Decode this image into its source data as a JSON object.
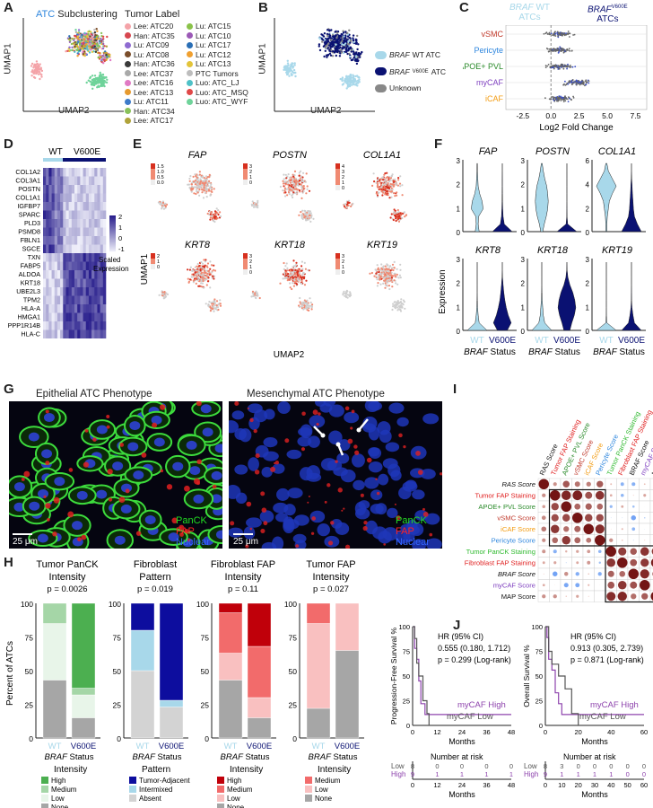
{
  "panels": {
    "A": {
      "label": "A",
      "title_colored": "ATC",
      "title_rest": " Subclustering",
      "legend_title": "Tumor Label",
      "xlabel": "UMAP2",
      "ylabel": "UMAP1",
      "legend_col1": [
        {
          "name": "Lee: ATC20",
          "color": "#f4a3a8"
        },
        {
          "name": "Han: ATC35",
          "color": "#d7474f"
        },
        {
          "name": "Lu: ATC09",
          "color": "#8e6bd1"
        },
        {
          "name": "Lu: ATC08",
          "color": "#7b4e2b"
        },
        {
          "name": "Han: ATC36",
          "color": "#3a3a3a"
        },
        {
          "name": "Lee: ATC37",
          "color": "#a9a9a9"
        },
        {
          "name": "Lee: ATC16",
          "color": "#e07ac4"
        },
        {
          "name": "Lee: ATC13",
          "color": "#e69a2f"
        },
        {
          "name": "Lu: ATC11",
          "color": "#3d7bc9"
        },
        {
          "name": "Han: ATC34",
          "color": "#89c15a"
        },
        {
          "name": "Lee: ATC17",
          "color": "#b0a33a"
        }
      ],
      "legend_col2": [
        {
          "name": "Lu: ATC15",
          "color": "#8ac24a"
        },
        {
          "name": "Lu: ATC10",
          "color": "#9b59b6"
        },
        {
          "name": "Lu: ATC17",
          "color": "#2a6eb5"
        },
        {
          "name": "Lu: ATC12",
          "color": "#f0a030"
        },
        {
          "name": "Lu: ATC13",
          "color": "#e3c43a"
        },
        {
          "name": "PTC Tumors",
          "color": "#bdbdbd"
        },
        {
          "name": "Luo: ATC_LJ",
          "color": "#4fc1c7"
        },
        {
          "name": "Luo: ATC_MSQ",
          "color": "#e04848"
        },
        {
          "name": "Luo: ATC_WYF",
          "color": "#6fd39a"
        }
      ]
    },
    "B": {
      "label": "B",
      "xlabel": "UMAP2",
      "ylabel": "UMAP1",
      "legend": [
        {
          "gene": "BRAF",
          "rest": " WT ATC",
          "color": "#a8d8ea"
        },
        {
          "gene": "BRAF",
          "sup": "V600E",
          "rest": " ATC",
          "color": "#0a1172"
        },
        {
          "gene": "",
          "rest": "Unknown",
          "color": "#888888"
        }
      ]
    },
    "C": {
      "label": "C",
      "head_left_gene": "BRAF",
      "head_left_rest": " WT",
      "head_left2": "ATCs",
      "head_right_gene": "BRAF",
      "head_right_sup": "V600E",
      "head_right2": "ATCs",
      "xlabel": "Log2 Fold Change",
      "rows": [
        {
          "name": "vSMC",
          "color": "#c0392b"
        },
        {
          "name": "Pericyte",
          "color": "#2e86de"
        },
        {
          "name": "APOE+ PVL",
          "color": "#2a8a2a"
        },
        {
          "name": "myCAF",
          "color": "#7e3fbf"
        },
        {
          "name": "iCAF",
          "color": "#f39c12"
        }
      ],
      "ticks": [
        "-2.5",
        "0.0",
        "2.5",
        "5.0",
        "7.5"
      ]
    },
    "D": {
      "label": "D",
      "col_wt": "WT",
      "col_v600e": "V600E",
      "scale_label": "Scaled Expression",
      "scale_ticks": [
        "2",
        "1",
        "0",
        "-1"
      ],
      "genes": [
        "COL1A2",
        "COL3A1",
        "POSTN",
        "COL1A1",
        "IGFBP7",
        "SPARC",
        "PLD3",
        "PSMD8",
        "FBLN1",
        "SGCE",
        "TXN",
        "FABP5",
        "ALDOA",
        "KRT18",
        "UBE2L3",
        "TPM2",
        "HLA-A",
        "HMGA1",
        "PPP1R14B",
        "HLA-C"
      ]
    },
    "E": {
      "label": "E",
      "xlabel": "UMAP2",
      "ylabel": "UMAP1",
      "genes_top": [
        "FAP",
        "POSTN",
        "COL1A1"
      ],
      "genes_bottom": [
        "KRT8",
        "KRT18",
        "KRT19"
      ],
      "scales_top": [
        [
          "1.5",
          "1.0",
          "0.5",
          "0.0"
        ],
        [
          "3",
          "2",
          "1",
          "0"
        ],
        [
          "4",
          "3",
          "2",
          "1",
          "0"
        ]
      ],
      "scales_bottom": [
        [
          "2",
          "1",
          "0"
        ],
        [
          "3",
          "2",
          "1",
          "0"
        ],
        [
          "3",
          "2",
          "1",
          "0"
        ]
      ]
    },
    "F": {
      "label": "F",
      "ylabel": "Expression",
      "xlabel_gene": "BRAF",
      "xlabel_rest": " Status",
      "cat_wt": "WT",
      "cat_v600e": "V600E",
      "top": [
        {
          "gene": "FAP",
          "ticks": [
            "3",
            "2",
            "1",
            "0"
          ]
        },
        {
          "gene": "POSTN",
          "ticks": [
            "3",
            "2",
            "1",
            "0"
          ]
        },
        {
          "gene": "COL1A1",
          "ticks": [
            "6",
            "4",
            "2",
            "0"
          ]
        }
      ],
      "bottom": [
        {
          "gene": "KRT8",
          "ticks": [
            "3",
            "2",
            "1",
            "0"
          ]
        },
        {
          "gene": "KRT18",
          "ticks": [
            "3",
            "2",
            "1",
            "0"
          ]
        },
        {
          "gene": "KRT19",
          "ticks": [
            "3",
            "2",
            "1",
            "0"
          ]
        }
      ]
    },
    "G": {
      "label": "G",
      "left_title": "Epithelial ATC Phenotype",
      "right_title": "Mesenchymal ATC Phenotype",
      "scale": "25 μm",
      "stain_legend": [
        {
          "name": "PanCK",
          "color": "#22dd22"
        },
        {
          "name": "FAP",
          "color": "#ff2222"
        },
        {
          "name": "Nuclear",
          "color": "#3366ff"
        }
      ]
    },
    "H": {
      "label": "H",
      "ylabel": "Percent of ATCs",
      "xlabel_gene": "BRAF",
      "xlabel_rest": " Status",
      "cat_wt": "WT",
      "cat_v600e": "V600E",
      "y_ticks": [
        "100",
        "75",
        "50",
        "25",
        "0"
      ],
      "charts": [
        {
          "title1": "Tumor PanCK",
          "title2": "Intensity",
          "p": "p = 0.0026",
          "legend_title": "Intensity",
          "legend": [
            {
              "name": "High",
              "color": "#4caf50"
            },
            {
              "name": "Medium",
              "color": "#a5d6a7"
            },
            {
              "name": "Low",
              "color": "#e8f5e9"
            },
            {
              "name": "None",
              "color": "#a6a6a6"
            }
          ]
        },
        {
          "title1": "Fibroblast",
          "title2": "Pattern",
          "p": "p = 0.019",
          "legend_title": "Pattern",
          "legend": [
            {
              "name": "Tumor-Adjacent",
              "color": "#0d0d9e"
            },
            {
              "name": "Intermixed",
              "color": "#a8d8ea"
            },
            {
              "name": "Absent",
              "color": "#d3d3d3"
            }
          ]
        },
        {
          "title1": "Fibroblast FAP",
          "title2": "Intensity",
          "p": "p = 0.11",
          "legend_title": "Intensity",
          "legend": [
            {
              "name": "High",
              "color": "#c0000a"
            },
            {
              "name": "Medium",
              "color": "#f26b6b"
            },
            {
              "name": "Low",
              "color": "#f9c0c0"
            },
            {
              "name": "None",
              "color": "#a6a6a6"
            }
          ]
        },
        {
          "title1": "Tumor FAP",
          "title2": "Intensity",
          "p": "p = 0.027",
          "legend_title": "Intensity",
          "legend": [
            {
              "name": "Medium",
              "color": "#f26b6b"
            },
            {
              "name": "Low",
              "color": "#f9c0c0"
            },
            {
              "name": "None",
              "color": "#a6a6a6"
            }
          ]
        }
      ]
    },
    "I": {
      "label": "I",
      "legend_title": "Spearman's rho",
      "scale_ticks": [
        "-1",
        "-0.5",
        "0",
        "0.5",
        "1"
      ],
      "vars": [
        {
          "name": "RAS Score",
          "color": "#111111",
          "ital": true
        },
        {
          "name": "Tumor FAP Staining",
          "color": "#e02020"
        },
        {
          "name": "APOE+ PVL Score",
          "color": "#2a8a2a"
        },
        {
          "name": "vSMC Score",
          "color": "#c0392b"
        },
        {
          "name": "iCAF Score",
          "color": "#f39c12"
        },
        {
          "name": "Pericyte Score",
          "color": "#2e86de"
        },
        {
          "name": "Tumor PanCK Staining",
          "color": "#33bb33"
        },
        {
          "name": "Fibroblast FAP Staining",
          "color": "#e02020"
        },
        {
          "name": "BRAF Score",
          "color": "#111111",
          "ital": true
        },
        {
          "name": "myCAF Score",
          "color": "#7e3fbf"
        },
        {
          "name": "MAP Score",
          "color": "#111111"
        }
      ]
    },
    "J": {
      "label": "J",
      "left": {
        "ylabel": "Progression-Free Survival %",
        "hr1": "HR (95% CI)",
        "hr2": "0.555 (0.180, 1.712)",
        "p": "p = 0.299 (Log-rank)",
        "high": "myCAF High",
        "low": "myCAF Low",
        "xlabel": "Months",
        "x_ticks": [
          "0",
          "12",
          "24",
          "36",
          "48"
        ],
        "y_ticks": [
          "100",
          "75",
          "50",
          "25",
          "0"
        ],
        "risk_title": "Number at risk",
        "risk_low": [
          "8",
          "0",
          "0",
          "0",
          "0"
        ],
        "risk_high": [
          "9",
          "1",
          "1",
          "1",
          "1"
        ]
      },
      "right": {
        "ylabel": "Overall Survival %",
        "hr1": "HR (95% CI)",
        "hr2": "0.913 (0.305, 2.739)",
        "p": "p = 0.871 (Log-rank)",
        "high": "myCAF High",
        "low": "myCAF Low",
        "xlabel": "Months",
        "x_ticks": [
          "0",
          "20",
          "40",
          "60"
        ],
        "y_ticks": [
          "100",
          "75",
          "50",
          "25",
          "0"
        ],
        "risk_title": "Number at risk",
        "risk_low": [
          "8",
          "3",
          "0",
          "0",
          "0",
          "0",
          "0"
        ],
        "risk_high": [
          "9",
          "1",
          "1",
          "1",
          "1",
          "0",
          "0"
        ],
        "risk_ticks": [
          "0",
          "10",
          "20",
          "30",
          "40",
          "50",
          "60"
        ]
      },
      "risk_label_low": "Low",
      "risk_label_high": "High"
    }
  },
  "chart_data": [
    {
      "type": "bar",
      "title": "Tumor PanCK Intensity",
      "categories": [
        "WT",
        "V600E"
      ],
      "series": [
        {
          "name": "None",
          "values": [
            43,
            15
          ]
        },
        {
          "name": "Low",
          "values": [
            42,
            17
          ]
        },
        {
          "name": "Medium",
          "values": [
            15,
            5
          ]
        },
        {
          "name": "High",
          "values": [
            0,
            63
          ]
        }
      ],
      "ylim": [
        0,
        100
      ],
      "ylabel": "Percent of ATCs"
    },
    {
      "type": "bar",
      "title": "Fibroblast Pattern",
      "categories": [
        "WT",
        "V600E"
      ],
      "series": [
        {
          "name": "Absent",
          "values": [
            50,
            23
          ]
        },
        {
          "name": "Intermixed",
          "values": [
            30,
            5
          ]
        },
        {
          "name": "Tumor-Adjacent",
          "values": [
            20,
            72
          ]
        }
      ],
      "ylim": [
        0,
        100
      ],
      "ylabel": "Percent of ATCs"
    },
    {
      "type": "bar",
      "title": "Fibroblast FAP Intensity",
      "categories": [
        "WT",
        "V600E"
      ],
      "series": [
        {
          "name": "None",
          "values": [
            43,
            15
          ]
        },
        {
          "name": "Low",
          "values": [
            20,
            15
          ]
        },
        {
          "name": "Medium",
          "values": [
            30,
            38
          ]
        },
        {
          "name": "High",
          "values": [
            7,
            32
          ]
        }
      ],
      "ylim": [
        0,
        100
      ],
      "ylabel": "Percent of ATCs"
    },
    {
      "type": "bar",
      "title": "Tumor FAP Intensity",
      "categories": [
        "WT",
        "V600E"
      ],
      "series": [
        {
          "name": "None",
          "values": [
            22,
            65
          ]
        },
        {
          "name": "Low",
          "values": [
            63,
            35
          ]
        },
        {
          "name": "Medium",
          "values": [
            15,
            0
          ]
        }
      ],
      "ylim": [
        0,
        100
      ],
      "ylabel": "Percent of ATCs"
    },
    {
      "type": "line",
      "title": "",
      "xlabel": "Months",
      "ylabel": "Progression-Free Survival %",
      "xlim": [
        0,
        48
      ],
      "ylim": [
        0,
        100
      ],
      "series": [
        {
          "name": "myCAF High",
          "x": [
            0,
            1,
            2,
            3,
            4,
            6,
            10,
            48
          ],
          "y": [
            100,
            78,
            67,
            45,
            22,
            11,
            11,
            11
          ]
        },
        {
          "name": "myCAF Low",
          "x": [
            0,
            1,
            2,
            3,
            5,
            7,
            8
          ],
          "y": [
            100,
            88,
            63,
            50,
            25,
            12,
            0
          ]
        }
      ]
    },
    {
      "type": "line",
      "title": "",
      "xlabel": "Months",
      "ylabel": "Overall Survival %",
      "xlim": [
        0,
        60
      ],
      "ylim": [
        0,
        100
      ],
      "series": [
        {
          "name": "myCAF High",
          "x": [
            0,
            1,
            2,
            4,
            6,
            8,
            10,
            60
          ],
          "y": [
            100,
            89,
            67,
            56,
            33,
            22,
            11,
            11
          ]
        },
        {
          "name": "myCAF Low",
          "x": [
            0,
            2,
            4,
            8,
            12,
            16,
            20
          ],
          "y": [
            100,
            75,
            62,
            50,
            37,
            12,
            0
          ]
        }
      ]
    }
  ],
  "colors": {
    "wt": "#a8d8ea",
    "v600e": "#0a1172",
    "grey": "#bdbdbd"
  }
}
